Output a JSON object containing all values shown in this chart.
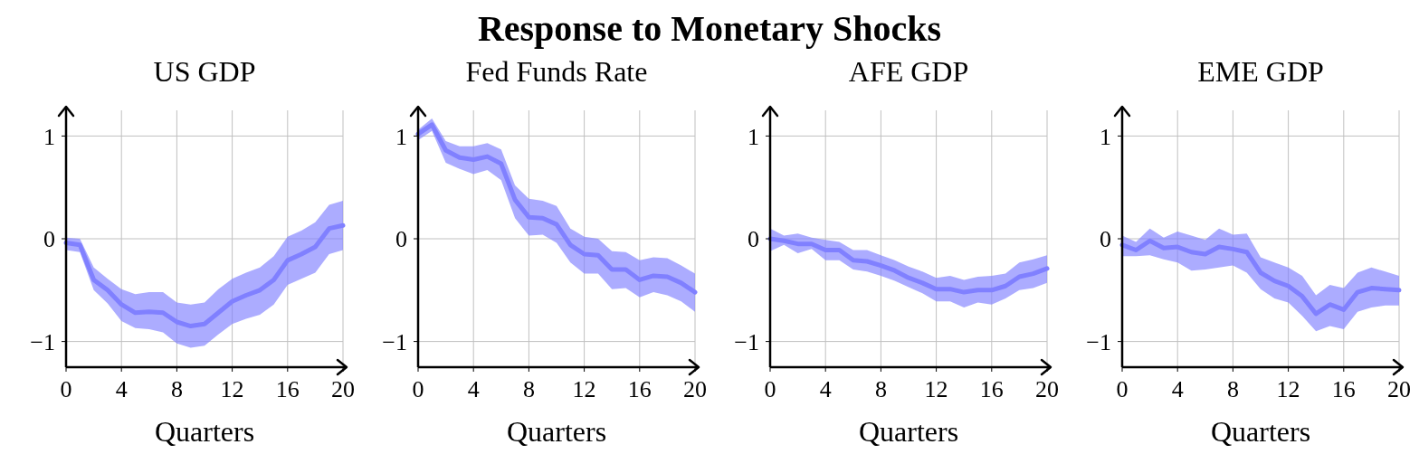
{
  "chart_data": [
    {
      "type": "line",
      "title": "US GDP",
      "annotations": [
        "Response to Monetary Shocks"
      ],
      "xlabel": "Quarters",
      "x": [
        0,
        1,
        2,
        3,
        4,
        5,
        6,
        7,
        8,
        9,
        10,
        11,
        12,
        13,
        14,
        15,
        16,
        17,
        18,
        19,
        20
      ],
      "xlim": [
        0,
        20
      ],
      "xticks": [
        0,
        4,
        8,
        12,
        16,
        20
      ],
      "ylim": [
        -1.25,
        1.25
      ],
      "yticks": [
        -1,
        0,
        1
      ],
      "grid": true,
      "series": [
        {
          "color": "#8080ff",
          "values": [
            -0.04,
            -0.06,
            -0.4,
            -0.5,
            -0.64,
            -0.72,
            -0.71,
            -0.72,
            -0.81,
            -0.85,
            -0.83,
            -0.72,
            -0.61,
            -0.55,
            -0.5,
            -0.4,
            -0.21,
            -0.15,
            -0.08,
            0.1,
            0.13
          ],
          "upper": [
            0.01,
            0.0,
            -0.28,
            -0.39,
            -0.49,
            -0.54,
            -0.52,
            -0.52,
            -0.62,
            -0.64,
            -0.62,
            -0.49,
            -0.39,
            -0.33,
            -0.28,
            -0.17,
            0.02,
            0.08,
            0.16,
            0.33,
            0.37
          ],
          "lower": [
            -0.11,
            -0.13,
            -0.5,
            -0.63,
            -0.8,
            -0.87,
            -0.88,
            -0.91,
            -1.02,
            -1.06,
            -1.04,
            -0.93,
            -0.83,
            -0.78,
            -0.74,
            -0.64,
            -0.45,
            -0.39,
            -0.33,
            -0.15,
            -0.11
          ]
        }
      ]
    },
    {
      "type": "line",
      "title": "Fed Funds Rate",
      "xlabel": "Quarters",
      "x": [
        0,
        1,
        2,
        3,
        4,
        5,
        6,
        7,
        8,
        9,
        10,
        11,
        12,
        13,
        14,
        15,
        16,
        17,
        18,
        19,
        20
      ],
      "xlim": [
        0,
        20
      ],
      "xticks": [
        0,
        4,
        8,
        12,
        16,
        20
      ],
      "ylim": [
        -1.25,
        1.25
      ],
      "yticks": [
        -1,
        0,
        1
      ],
      "grid": true,
      "series": [
        {
          "color": "#8080ff",
          "values": [
            1.02,
            1.11,
            0.86,
            0.79,
            0.77,
            0.8,
            0.73,
            0.38,
            0.21,
            0.2,
            0.14,
            -0.06,
            -0.15,
            -0.16,
            -0.3,
            -0.3,
            -0.4,
            -0.36,
            -0.37,
            -0.43,
            -0.52
          ],
          "upper": [
            1.06,
            1.17,
            0.95,
            0.9,
            0.9,
            0.93,
            0.87,
            0.52,
            0.39,
            0.37,
            0.32,
            0.1,
            0.02,
            0.0,
            -0.12,
            -0.13,
            -0.21,
            -0.18,
            -0.19,
            -0.26,
            -0.34
          ],
          "lower": [
            0.96,
            1.05,
            0.74,
            0.68,
            0.63,
            0.67,
            0.57,
            0.2,
            0.03,
            0.04,
            -0.04,
            -0.23,
            -0.34,
            -0.34,
            -0.49,
            -0.48,
            -0.57,
            -0.52,
            -0.55,
            -0.61,
            -0.71
          ]
        }
      ]
    },
    {
      "type": "line",
      "title": "AFE GDP",
      "xlabel": "Quarters",
      "x": [
        0,
        1,
        2,
        3,
        4,
        5,
        6,
        7,
        8,
        9,
        10,
        11,
        12,
        13,
        14,
        15,
        16,
        17,
        18,
        19,
        20
      ],
      "xlim": [
        0,
        20
      ],
      "xticks": [
        0,
        4,
        8,
        12,
        16,
        20
      ],
      "ylim": [
        -1.25,
        1.25
      ],
      "yticks": [
        -1,
        0,
        1
      ],
      "grid": true,
      "series": [
        {
          "color": "#8080ff",
          "values": [
            0.0,
            -0.02,
            -0.05,
            -0.05,
            -0.11,
            -0.11,
            -0.21,
            -0.22,
            -0.26,
            -0.31,
            -0.38,
            -0.43,
            -0.49,
            -0.49,
            -0.52,
            -0.5,
            -0.5,
            -0.46,
            -0.37,
            -0.34,
            -0.29
          ],
          "upper": [
            0.1,
            0.03,
            0.05,
            0.01,
            -0.01,
            -0.03,
            -0.11,
            -0.11,
            -0.16,
            -0.21,
            -0.27,
            -0.32,
            -0.38,
            -0.36,
            -0.4,
            -0.37,
            -0.36,
            -0.34,
            -0.23,
            -0.2,
            -0.16
          ],
          "lower": [
            -0.12,
            -0.06,
            -0.14,
            -0.1,
            -0.21,
            -0.21,
            -0.3,
            -0.32,
            -0.36,
            -0.41,
            -0.47,
            -0.53,
            -0.61,
            -0.61,
            -0.67,
            -0.62,
            -0.64,
            -0.58,
            -0.5,
            -0.48,
            -0.43
          ]
        }
      ]
    },
    {
      "type": "line",
      "title": "EME GDP",
      "xlabel": "Quarters",
      "x": [
        0,
        1,
        2,
        3,
        4,
        5,
        6,
        7,
        8,
        9,
        10,
        11,
        12,
        13,
        14,
        15,
        16,
        17,
        18,
        19,
        20
      ],
      "xlim": [
        0,
        20
      ],
      "xticks": [
        0,
        4,
        8,
        12,
        16,
        20
      ],
      "ylim": [
        -1.25,
        1.25
      ],
      "yticks": [
        -1,
        0,
        1
      ],
      "grid": true,
      "series": [
        {
          "color": "#8080ff",
          "values": [
            -0.06,
            -0.11,
            -0.02,
            -0.09,
            -0.08,
            -0.13,
            -0.15,
            -0.08,
            -0.1,
            -0.13,
            -0.33,
            -0.41,
            -0.46,
            -0.56,
            -0.73,
            -0.64,
            -0.69,
            -0.52,
            -0.48,
            -0.49,
            -0.5
          ],
          "upper": [
            0.03,
            -0.03,
            0.1,
            0.01,
            0.07,
            0.03,
            -0.01,
            0.1,
            0.04,
            0.05,
            -0.18,
            -0.23,
            -0.28,
            -0.36,
            -0.55,
            -0.45,
            -0.48,
            -0.33,
            -0.28,
            -0.32,
            -0.36
          ],
          "lower": [
            -0.17,
            -0.17,
            -0.16,
            -0.2,
            -0.23,
            -0.31,
            -0.3,
            -0.28,
            -0.26,
            -0.33,
            -0.49,
            -0.58,
            -0.62,
            -0.75,
            -0.9,
            -0.85,
            -0.88,
            -0.71,
            -0.67,
            -0.65,
            -0.65
          ]
        }
      ]
    }
  ]
}
